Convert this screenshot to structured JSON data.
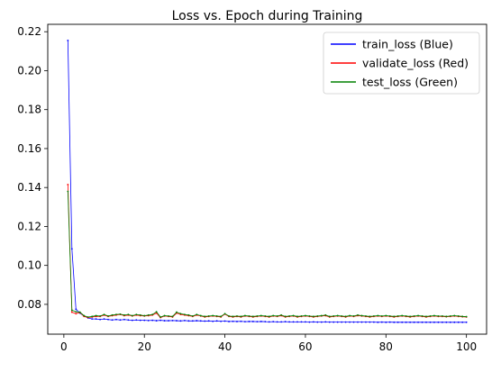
{
  "chart_data": {
    "type": "line",
    "title": "Loss vs. Epoch during Training",
    "xlabel": "",
    "ylabel": "",
    "xlim": [
      -4,
      105
    ],
    "ylim": [
      0.0647,
      0.2238
    ],
    "xticks": [
      0,
      20,
      40,
      60,
      80,
      100
    ],
    "yticks": [
      0.08,
      0.1,
      0.12,
      0.14,
      0.16,
      0.18,
      0.2,
      0.22
    ],
    "xtick_labels": [
      "0",
      "20",
      "40",
      "60",
      "80",
      "100"
    ],
    "ytick_labels": [
      "0.08",
      "0.10",
      "0.12",
      "0.14",
      "0.16",
      "0.18",
      "0.20",
      "0.22"
    ],
    "grid": false,
    "legend_position": "top-right",
    "x": [
      1,
      2,
      3,
      4,
      5,
      6,
      7,
      8,
      9,
      10,
      11,
      12,
      13,
      14,
      15,
      16,
      17,
      18,
      19,
      20,
      21,
      22,
      23,
      24,
      25,
      26,
      27,
      28,
      29,
      30,
      31,
      32,
      33,
      34,
      35,
      36,
      37,
      38,
      39,
      40,
      41,
      42,
      43,
      44,
      45,
      46,
      47,
      48,
      49,
      50,
      51,
      52,
      53,
      54,
      55,
      56,
      57,
      58,
      59,
      60,
      61,
      62,
      63,
      64,
      65,
      66,
      67,
      68,
      69,
      70,
      71,
      72,
      73,
      74,
      75,
      76,
      77,
      78,
      79,
      80,
      81,
      82,
      83,
      84,
      85,
      86,
      87,
      88,
      89,
      90,
      91,
      92,
      93,
      94,
      95,
      96,
      97,
      98,
      99,
      100
    ],
    "series": [
      {
        "name": "train_loss (Blue)",
        "color": "#0000ff",
        "values": [
          0.2155,
          0.1085,
          0.0775,
          0.0755,
          0.074,
          0.073,
          0.0725,
          0.0725,
          0.0722,
          0.0725,
          0.0722,
          0.072,
          0.0722,
          0.072,
          0.0722,
          0.072,
          0.0718,
          0.072,
          0.0718,
          0.0718,
          0.0717,
          0.0718,
          0.0716,
          0.0718,
          0.0716,
          0.0716,
          0.0717,
          0.0716,
          0.0715,
          0.0717,
          0.0715,
          0.0715,
          0.0716,
          0.0715,
          0.0714,
          0.0715,
          0.0713,
          0.0715,
          0.0713,
          0.0714,
          0.0712,
          0.0713,
          0.0712,
          0.0713,
          0.0711,
          0.0712,
          0.0712,
          0.0711,
          0.0712,
          0.0711,
          0.071,
          0.0711,
          0.071,
          0.071,
          0.0711,
          0.071,
          0.071,
          0.071,
          0.071,
          0.071,
          0.0709,
          0.071,
          0.0709,
          0.0709,
          0.071,
          0.0709,
          0.0709,
          0.0709,
          0.0709,
          0.0709,
          0.0709,
          0.0709,
          0.0709,
          0.0709,
          0.0709,
          0.0709,
          0.0709,
          0.0708,
          0.0709,
          0.0708,
          0.0709,
          0.0708,
          0.0708,
          0.0708,
          0.0708,
          0.0708,
          0.0708,
          0.0708,
          0.0708,
          0.0708,
          0.0708,
          0.0708,
          0.0708,
          0.0708,
          0.0708,
          0.0708,
          0.0708,
          0.0708,
          0.0708,
          0.0708
        ]
      },
      {
        "name": "validate_loss (Red)",
        "color": "#ff0000",
        "values": [
          0.1415,
          0.076,
          0.0752,
          0.0758,
          0.0738,
          0.0732,
          0.0735,
          0.0738,
          0.0738,
          0.0745,
          0.0738,
          0.0742,
          0.0745,
          0.0748,
          0.0742,
          0.0745,
          0.074,
          0.0745,
          0.0742,
          0.074,
          0.0742,
          0.0745,
          0.0755,
          0.0732,
          0.074,
          0.0738,
          0.0735,
          0.0755,
          0.0748,
          0.0745,
          0.0742,
          0.0738,
          0.0745,
          0.074,
          0.0735,
          0.0738,
          0.074,
          0.0738,
          0.0735,
          0.075,
          0.0738,
          0.0735,
          0.0738,
          0.0735,
          0.074,
          0.0738,
          0.0735,
          0.0738,
          0.074,
          0.0738,
          0.0735,
          0.074,
          0.0738,
          0.0742,
          0.0735,
          0.0738,
          0.074,
          0.0735,
          0.0738,
          0.074,
          0.0738,
          0.0735,
          0.0738,
          0.074,
          0.0742,
          0.0735,
          0.0738,
          0.074,
          0.0738,
          0.0735,
          0.074,
          0.0738,
          0.0742,
          0.074,
          0.0738,
          0.0735,
          0.0738,
          0.074,
          0.0738,
          0.074,
          0.0738,
          0.0735,
          0.0738,
          0.074,
          0.0738,
          0.0735,
          0.0738,
          0.074,
          0.0738,
          0.0735,
          0.0738,
          0.074,
          0.0738,
          0.0738,
          0.0736,
          0.0738,
          0.074,
          0.0738,
          0.0736,
          0.0735
        ]
      },
      {
        "name": "test_loss (Green)",
        "color": "#008000",
        "values": [
          0.138,
          0.077,
          0.0762,
          0.076,
          0.0742,
          0.0735,
          0.0738,
          0.0742,
          0.074,
          0.0748,
          0.074,
          0.0745,
          0.0748,
          0.075,
          0.0745,
          0.0748,
          0.0742,
          0.0748,
          0.0745,
          0.0742,
          0.0745,
          0.0748,
          0.0762,
          0.0735,
          0.0742,
          0.074,
          0.0738,
          0.076,
          0.0752,
          0.0748,
          0.0745,
          0.074,
          0.0748,
          0.0742,
          0.0738,
          0.074,
          0.0742,
          0.074,
          0.0738,
          0.0752,
          0.074,
          0.0738,
          0.074,
          0.0738,
          0.0742,
          0.074,
          0.0738,
          0.074,
          0.0742,
          0.074,
          0.0738,
          0.0742,
          0.074,
          0.0745,
          0.0738,
          0.074,
          0.0742,
          0.0738,
          0.074,
          0.0742,
          0.074,
          0.0738,
          0.074,
          0.0742,
          0.0745,
          0.0738,
          0.074,
          0.0742,
          0.074,
          0.0738,
          0.0742,
          0.074,
          0.0745,
          0.0742,
          0.074,
          0.0738,
          0.074,
          0.0742,
          0.074,
          0.0742,
          0.074,
          0.0738,
          0.074,
          0.0742,
          0.074,
          0.0738,
          0.074,
          0.0742,
          0.074,
          0.0738,
          0.074,
          0.0742,
          0.074,
          0.074,
          0.0738,
          0.074,
          0.0742,
          0.074,
          0.0738,
          0.0737
        ]
      }
    ]
  }
}
